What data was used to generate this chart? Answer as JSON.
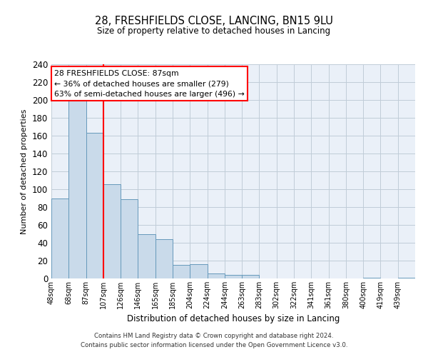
{
  "title": "28, FRESHFIELDS CLOSE, LANCING, BN15 9LU",
  "subtitle": "Size of property relative to detached houses in Lancing",
  "xlabel": "Distribution of detached houses by size in Lancing",
  "ylabel": "Number of detached properties",
  "bin_labels": [
    "48sqm",
    "68sqm",
    "87sqm",
    "107sqm",
    "126sqm",
    "146sqm",
    "165sqm",
    "185sqm",
    "204sqm",
    "224sqm",
    "244sqm",
    "263sqm",
    "283sqm",
    "302sqm",
    "322sqm",
    "341sqm",
    "361sqm",
    "380sqm",
    "400sqm",
    "419sqm",
    "439sqm"
  ],
  "bar_values": [
    90,
    200,
    163,
    106,
    89,
    50,
    44,
    15,
    16,
    6,
    4,
    4,
    0,
    0,
    0,
    0,
    0,
    0,
    1,
    0,
    1
  ],
  "bar_color": "#c9daea",
  "bar_edge_color": "#6699bb",
  "reference_line_index": 2,
  "annotation_title": "28 FRESHFIELDS CLOSE: 87sqm",
  "annotation_line1": "← 36% of detached houses are smaller (279)",
  "annotation_line2": "63% of semi-detached houses are larger (496) →",
  "annotation_box_color": "white",
  "annotation_box_edge_color": "red",
  "ylim": [
    0,
    240
  ],
  "yticks": [
    0,
    20,
    40,
    60,
    80,
    100,
    120,
    140,
    160,
    180,
    200,
    220,
    240
  ],
  "grid_color": "#c0ccd8",
  "background_color": "#eaf0f8",
  "footer_line1": "Contains HM Land Registry data © Crown copyright and database right 2024.",
  "footer_line2": "Contains public sector information licensed under the Open Government Licence v3.0."
}
